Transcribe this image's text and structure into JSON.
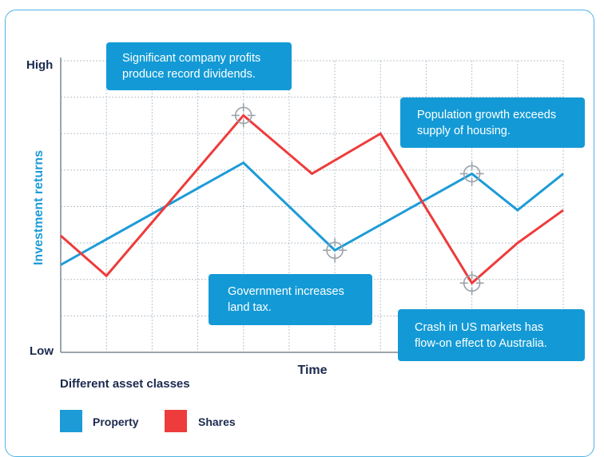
{
  "chart_data": {
    "type": "line",
    "x": [
      0,
      1,
      2,
      3,
      4,
      5,
      6,
      7,
      8,
      9,
      10,
      11
    ],
    "xlabel": "Time",
    "ylabel": "Investment returns",
    "y_tick_labels": {
      "high": "High",
      "low": "Low"
    },
    "ylim": [
      0,
      8
    ],
    "grid": true,
    "series": [
      {
        "name": "Property",
        "color": "#1d9bd7",
        "x": [
          0,
          4,
          6,
          9,
          10,
          11
        ],
        "values": [
          2.4,
          5.2,
          2.8,
          4.9,
          3.9,
          4.9
        ]
      },
      {
        "name": "Shares",
        "color": "#ee3b3b",
        "x": [
          0,
          1,
          4,
          5.5,
          7,
          9,
          10,
          11
        ],
        "values": [
          3.2,
          2.1,
          6.5,
          4.9,
          6.0,
          1.9,
          3.0,
          3.9
        ]
      }
    ],
    "markers": [
      {
        "x": 4,
        "y": 6.5
      },
      {
        "x": 6,
        "y": 2.8
      },
      {
        "x": 9,
        "y": 4.9
      },
      {
        "x": 9,
        "y": 1.9
      }
    ],
    "annotations": [
      {
        "id": "dividends",
        "text": "Significant company profits\nproduce record dividends."
      },
      {
        "id": "housing",
        "text": "Population growth exceeds\nsupply of housing."
      },
      {
        "id": "landtax",
        "text": "Government increases\nland tax."
      },
      {
        "id": "crash",
        "text": "Crash in US markets has\nflow-on effect to Australia."
      }
    ],
    "legend": {
      "title": "Different asset classes",
      "placement": "bottom-left",
      "items": [
        {
          "label": "Property",
          "color": "#1d9bd7"
        },
        {
          "label": "Shares",
          "color": "#ee3b3b"
        }
      ]
    }
  }
}
